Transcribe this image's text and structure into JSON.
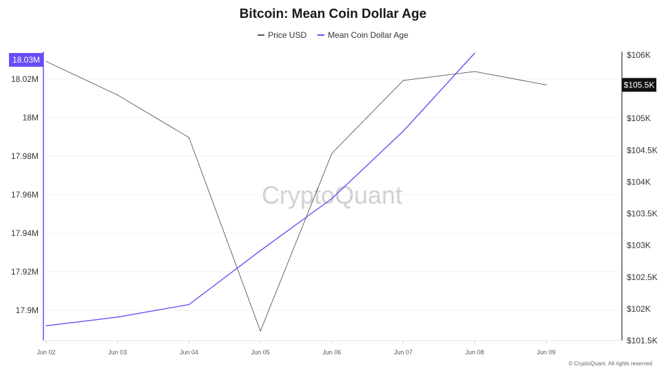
{
  "chart_data": {
    "type": "line",
    "title": "Bitcoin: Mean Coin Dollar Age",
    "categories": [
      "Jun 02",
      "Jun 03",
      "Jun 04",
      "Jun 05",
      "Jun 06",
      "Jun 07",
      "Jun 08",
      "Jun 09"
    ],
    "series": [
      {
        "name": "Price USD",
        "axis": "right",
        "color": "#555555",
        "values": [
          105900,
          105370,
          104700,
          101650,
          104450,
          105600,
          105740,
          105530
        ]
      },
      {
        "name": "Mean Coin Dollar Age",
        "axis": "left",
        "color": "#6a4df5",
        "values": [
          17.892,
          17.8965,
          17.903,
          17.931,
          17.958,
          17.993,
          18.0335,
          null
        ]
      }
    ],
    "y_left": {
      "ticks": [
        17.9,
        17.92,
        17.94,
        17.96,
        17.98,
        18.0,
        18.02
      ],
      "tick_labels": [
        "17.9M",
        "17.92M",
        "17.94M",
        "17.96M",
        "17.98M",
        "18M",
        "18.02M"
      ],
      "range": [
        17.8843,
        18.0343
      ],
      "current_label": "18.03M",
      "current_value": 18.03
    },
    "y_right": {
      "ticks": [
        101500,
        102000,
        102500,
        103000,
        103500,
        104000,
        104500,
        105000,
        106000
      ],
      "tick_labels": [
        "$101.5K",
        "$102K",
        "$102.5K",
        "$103K",
        "$103.5K",
        "$104K",
        "$104.5K",
        "$105K",
        "$106K"
      ],
      "range": [
        101500,
        106000
      ],
      "current_label": "$105.5K",
      "current_value": 105530
    },
    "grid": true,
    "legend_position": "top-center"
  },
  "watermark": "CryptoQuant",
  "footer": "© CryptoQuant. All rights reserved"
}
